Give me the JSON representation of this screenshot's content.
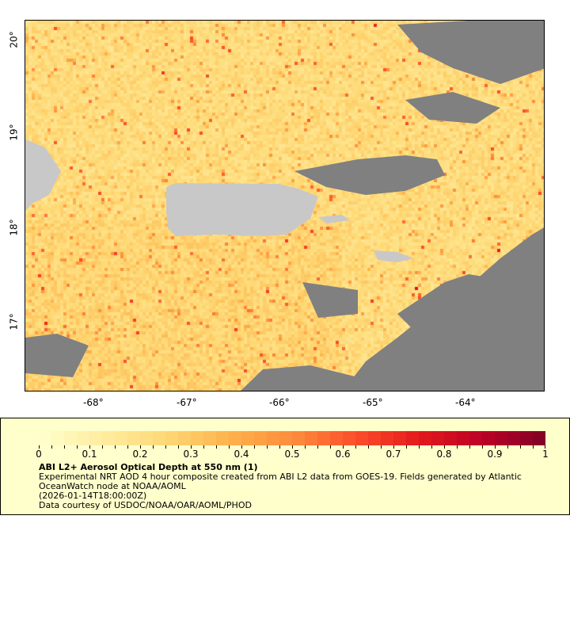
{
  "map": {
    "lon_ticks": [
      "-68°",
      "-67°",
      "-66°",
      "-65°",
      "-64°"
    ],
    "lat_ticks": [
      "20°",
      "19°",
      "18°",
      "17°"
    ],
    "colors": {
      "land": "#c8c8c8",
      "no_data": "#808080",
      "frame": "#000000"
    }
  },
  "colorbar": {
    "min": 0,
    "max": 1,
    "labels": [
      "0",
      "0.1",
      "0.2",
      "0.3",
      "0.4",
      "0.5",
      "0.6",
      "0.7",
      "0.8",
      "0.9",
      "1"
    ],
    "palette": [
      "#ffffcc",
      "#ffeda0",
      "#fed976",
      "#feb24c",
      "#fd8d3c",
      "#fc4e2a",
      "#e31a1c",
      "#bd0026",
      "#800026"
    ]
  },
  "legend": {
    "title": "ABI L2+ Aerosol Optical Depth at 550 nm (1)",
    "description": "Experimental NRT AOD 4 hour composite created from ABI L2 data from GOES-19. Fields generated by Atlantic",
    "description2": "OceanWatch node at NOAA/AOML",
    "time": "(2026-01-14T18:00:00Z)",
    "credit": "Data courtesy of USDOC/NOAA/OAR/AOML/PHOD"
  }
}
